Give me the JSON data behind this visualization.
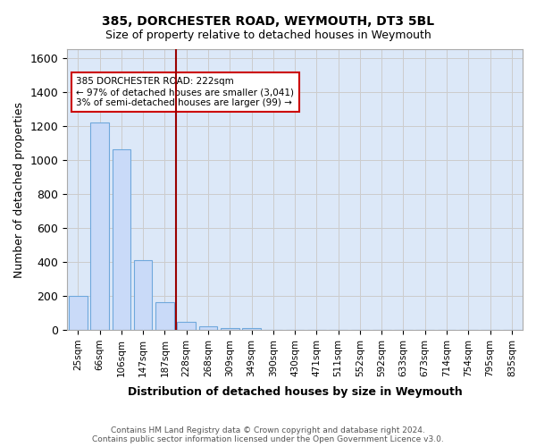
{
  "title1": "385, DORCHESTER ROAD, WEYMOUTH, DT3 5BL",
  "title2": "Size of property relative to detached houses in Weymouth",
  "xlabel": "Distribution of detached houses by size in Weymouth",
  "ylabel": "Number of detached properties",
  "footnote1": "Contains HM Land Registry data © Crown copyright and database right 2024.",
  "footnote2": "Contains public sector information licensed under the Open Government Licence v3.0.",
  "annotation_line1": "385 DORCHESTER ROAD: 222sqm",
  "annotation_line2": "← 97% of detached houses are smaller (3,041)",
  "annotation_line3": "3% of semi-detached houses are larger (99) →",
  "bar_labels": [
    "25sqm",
    "66sqm",
    "106sqm",
    "147sqm",
    "187sqm",
    "228sqm",
    "268sqm",
    "309sqm",
    "349sqm",
    "390sqm",
    "430sqm",
    "471sqm",
    "511sqm",
    "552sqm",
    "592sqm",
    "633sqm",
    "673sqm",
    "714sqm",
    "754sqm",
    "795sqm",
    "835sqm"
  ],
  "bar_values": [
    200,
    1220,
    1060,
    410,
    165,
    45,
    20,
    10,
    10,
    0,
    0,
    0,
    0,
    0,
    0,
    0,
    0,
    0,
    0,
    0,
    0
  ],
  "bar_color": "#c9daf8",
  "bar_edge_color": "#6fa8dc",
  "vline_color": "#990000",
  "annotation_box_edge": "#cc0000",
  "grid_color": "#cccccc",
  "background_color": "#dce8f8",
  "ylim": [
    0,
    1650
  ],
  "yticks": [
    0,
    200,
    400,
    600,
    800,
    1000,
    1200,
    1400,
    1600
  ]
}
